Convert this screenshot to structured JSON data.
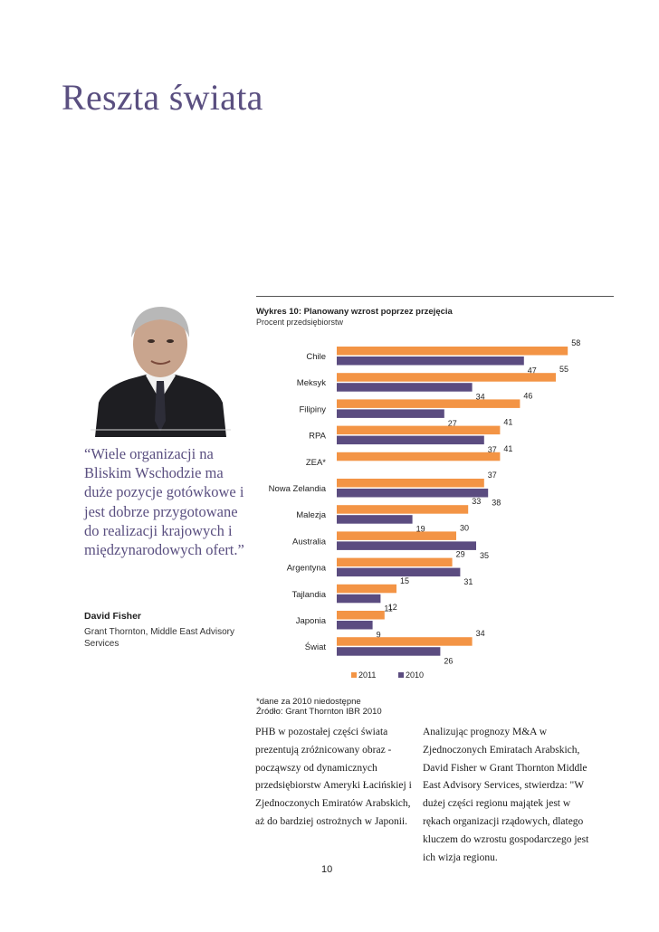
{
  "page": {
    "title": "Reszta świata",
    "quote": "“Wiele organizacji na Bliskim Wschodzie ma duże pozycje gotówkowe i jest dobrze przygotowane do realizacji krajowych i międzynarodowych ofert.”",
    "author_name": "David Fisher",
    "author_role": "Grant Thornton, Middle East Advisory Services",
    "chart_title": "Wykres 10:  Planowany wzrost poprzez przejęcia",
    "chart_subtitle": "Procent przedsiębiorstw",
    "note": "*dane za 2010 niedostępne",
    "source": "Źródło: Grant Thornton IBR 2010",
    "body_left": "PHB w pozostałej części świata prezentują zróżnicowany obraz - począwszy od dynamicznych przedsiębiorstw Ameryki Łacińskiej i Zjednoczonych Emiratów Arabskich, aż do bardziej ostrożnych w Japonii.",
    "body_right": "Analizując prognozy M&A w Zjednoczonych Emiratach Arabskich, David Fisher w Grant Thornton Middle East Advisory Services, stwierdza: \"W dużej części regionu majątek jest w rękach organizacji rządowych, dlatego kluczem do wzrostu gospodarczego jest ich wizja regionu.",
    "page_number": "10"
  },
  "colors": {
    "title": "#5a4f80",
    "series_2011": "#f39445",
    "series_2010": "#5b4c80"
  },
  "chart_data": {
    "type": "bar",
    "orientation": "horizontal",
    "title": "Wykres 10:  Planowany wzrost poprzez przejęcia",
    "ylabel": "Procent przedsiębiorstw",
    "categories": [
      "Chile",
      "Meksyk",
      "Filipiny",
      "RPA",
      "ZEA*",
      "Nowa Zelandia",
      "Malezja",
      "Australia",
      "Argentyna",
      "Tajlandia",
      "Japonia",
      "Świat"
    ],
    "series": [
      {
        "name": "2011",
        "values": [
          58,
          55,
          46,
          41,
          41,
          37,
          33,
          30,
          29,
          15,
          12,
          34
        ]
      },
      {
        "name": "2010",
        "values": [
          47,
          34,
          27,
          37,
          null,
          38,
          19,
          35,
          31,
          11,
          9,
          26
        ]
      }
    ],
    "xlim": [
      0,
      60
    ],
    "legend": "bottom",
    "grid": false
  }
}
